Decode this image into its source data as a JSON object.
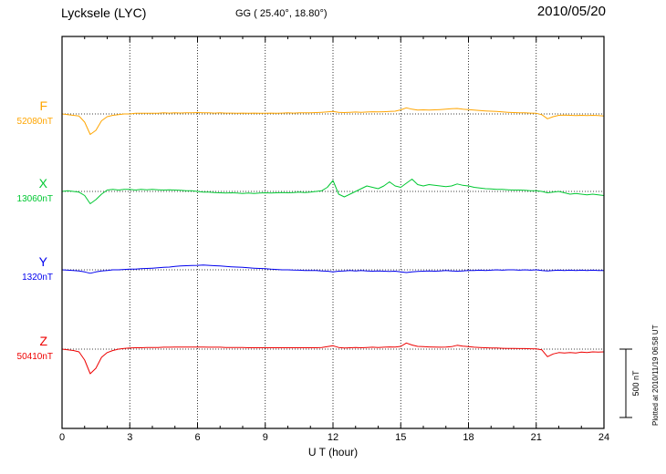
{
  "chart_data": {
    "type": "line",
    "title": "Lycksele (LYC)",
    "station_coords": "GG ( 25.40°, 18.80°)",
    "date": "2010/05/20",
    "xlabel": "U T (hour)",
    "x_range": [
      0,
      24
    ],
    "x_ticks": [
      0,
      3,
      6,
      9,
      12,
      15,
      18,
      21,
      24
    ],
    "sample_step_hours": 0.25,
    "scale_bar_nt": 500,
    "scale_bar_label": "500 nT",
    "plotted_at": "Plotted at 2010/11/19 06:58 UT",
    "grid": "dotted-vertical-3h",
    "legend_position": "left-of-plot",
    "series": [
      {
        "name": "F",
        "baseline_label": "52080nT",
        "baseline_nt": 52080,
        "color": "#FFA500",
        "values": [
          0,
          -5,
          -10,
          -15,
          -60,
          -150,
          -120,
          -50,
          -20,
          -10,
          -5,
          0,
          0,
          5,
          5,
          5,
          5,
          5,
          8,
          6,
          8,
          7,
          8,
          8,
          10,
          8,
          8,
          6,
          8,
          6,
          6,
          5,
          6,
          5,
          6,
          5,
          5,
          6,
          5,
          6,
          8,
          6,
          8,
          8,
          8,
          10,
          12,
          15,
          18,
          12,
          10,
          12,
          14,
          12,
          14,
          16,
          15,
          16,
          18,
          20,
          30,
          45,
          35,
          28,
          30,
          28,
          30,
          32,
          35,
          38,
          40,
          35,
          32,
          28,
          25,
          22,
          20,
          18,
          15,
          12,
          10,
          8,
          8,
          6,
          5,
          -5,
          -35,
          -20,
          -10,
          -8,
          -10,
          -12,
          -10,
          -12,
          -10,
          -12,
          -15
        ]
      },
      {
        "name": "X",
        "baseline_label": "13060nT",
        "baseline_nt": 13060,
        "color": "#00C832",
        "values": [
          0,
          5,
          0,
          -5,
          -30,
          -90,
          -60,
          -20,
          10,
          15,
          10,
          15,
          15,
          10,
          15,
          12,
          15,
          12,
          10,
          12,
          10,
          8,
          5,
          5,
          0,
          -5,
          -5,
          -8,
          -10,
          -12,
          -10,
          -12,
          -15,
          -12,
          -15,
          -12,
          -10,
          -12,
          -10,
          -8,
          -10,
          -8,
          -5,
          -8,
          -5,
          0,
          5,
          30,
          80,
          -20,
          -40,
          -20,
          0,
          20,
          40,
          30,
          20,
          40,
          70,
          40,
          30,
          60,
          90,
          50,
          40,
          50,
          45,
          40,
          35,
          40,
          55,
          45,
          40,
          30,
          25,
          20,
          18,
          15,
          15,
          12,
          10,
          10,
          8,
          5,
          5,
          0,
          -10,
          -5,
          0,
          -10,
          -20,
          -15,
          -20,
          -25,
          -20,
          -25,
          -30
        ]
      },
      {
        "name": "Y",
        "baseline_label": "1320nT",
        "baseline_nt": 1320,
        "color": "#0000EE",
        "values": [
          0,
          -3,
          -5,
          -8,
          -15,
          -25,
          -15,
          -8,
          -5,
          0,
          0,
          3,
          5,
          5,
          8,
          10,
          12,
          15,
          18,
          20,
          25,
          28,
          30,
          32,
          33,
          35,
          33,
          30,
          28,
          25,
          22,
          20,
          18,
          15,
          12,
          10,
          8,
          5,
          3,
          0,
          0,
          -2,
          -3,
          -5,
          -5,
          -5,
          -8,
          -10,
          -15,
          -10,
          -8,
          -5,
          -8,
          -5,
          -8,
          -10,
          -8,
          -10,
          -12,
          -10,
          -15,
          -20,
          -15,
          -12,
          -10,
          -8,
          -10,
          -8,
          -5,
          -8,
          -10,
          -8,
          -5,
          -5,
          -3,
          -5,
          -3,
          0,
          -3,
          0,
          0,
          -3,
          0,
          -3,
          0,
          -5,
          -8,
          -5,
          -3,
          -5,
          -3,
          -5,
          -3,
          -5,
          -3,
          -5,
          -5
        ]
      },
      {
        "name": "Z",
        "baseline_label": "50410nT",
        "baseline_nt": 50410,
        "color": "#EE0000",
        "values": [
          0,
          -5,
          -10,
          -20,
          -80,
          -180,
          -140,
          -60,
          -25,
          -10,
          0,
          5,
          8,
          10,
          10,
          12,
          12,
          12,
          14,
          14,
          15,
          15,
          15,
          15,
          15,
          15,
          14,
          14,
          14,
          12,
          12,
          12,
          12,
          10,
          10,
          10,
          10,
          10,
          10,
          10,
          10,
          10,
          10,
          10,
          10,
          10,
          12,
          18,
          25,
          12,
          8,
          10,
          12,
          10,
          12,
          14,
          12,
          14,
          16,
          15,
          20,
          45,
          30,
          20,
          18,
          16,
          15,
          14,
          15,
          18,
          28,
          22,
          18,
          14,
          12,
          10,
          8,
          8,
          6,
          5,
          5,
          4,
          4,
          3,
          2,
          -5,
          -55,
          -35,
          -25,
          -28,
          -25,
          -28,
          -22,
          -25,
          -20,
          -22,
          -20
        ]
      }
    ]
  }
}
